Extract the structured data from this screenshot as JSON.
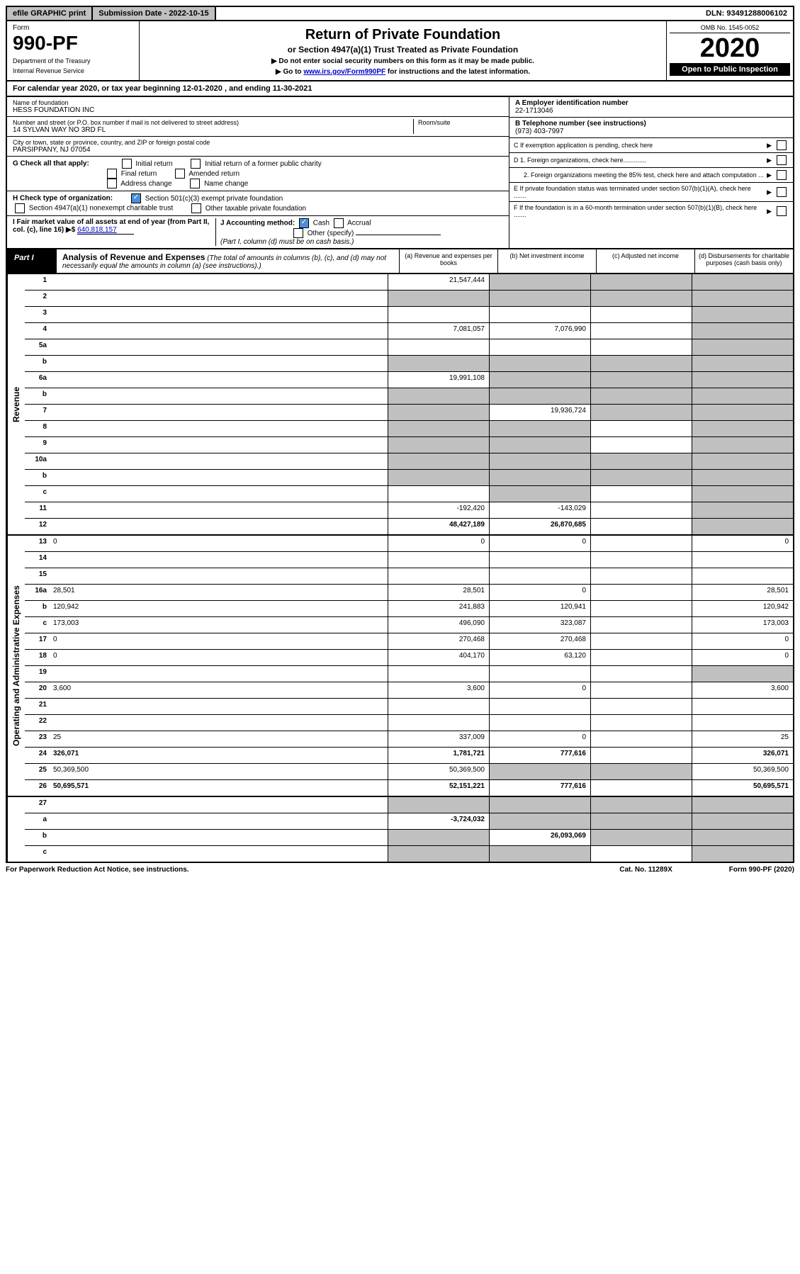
{
  "topbar": {
    "efile": "efile GRAPHIC print",
    "submission": "Submission Date - 2022-10-15",
    "dln": "DLN: 93491288006102"
  },
  "header": {
    "form_label": "Form",
    "form_number": "990-PF",
    "dept1": "Department of the Treasury",
    "dept2": "Internal Revenue Service",
    "title": "Return of Private Foundation",
    "subtitle": "or Section 4947(a)(1) Trust Treated as Private Foundation",
    "note1": "▶ Do not enter social security numbers on this form as it may be made public.",
    "note2": "▶ Go to ",
    "note2_link": "www.irs.gov/Form990PF",
    "note2_tail": " for instructions and the latest information.",
    "omb": "OMB No. 1545-0052",
    "year": "2020",
    "open": "Open to Public Inspection"
  },
  "calyear": "For calendar year 2020, or tax year beginning 12-01-2020                              , and ending 11-30-2021",
  "info": {
    "name_label": "Name of foundation",
    "name": "HESS FOUNDATION INC",
    "addr_label": "Number and street (or P.O. box number if mail is not delivered to street address)",
    "addr": "14 SYLVAN WAY NO 3RD FL",
    "room_label": "Room/suite",
    "city_label": "City or town, state or province, country, and ZIP or foreign postal code",
    "city": "PARSIPPANY, NJ  07054",
    "ein_label": "A Employer identification number",
    "ein": "22-1713046",
    "phone_label": "B Telephone number (see instructions)",
    "phone": "(973) 403-7997",
    "c_label": "C If exemption application is pending, check here",
    "d1": "D 1. Foreign organizations, check here.............",
    "d2": "2. Foreign organizations meeting the 85% test, check here and attach computation ...",
    "e_label": "E If private foundation status was terminated under section 507(b)(1)(A), check here .......",
    "f_label": "F If the foundation is in a 60-month termination under section 507(b)(1)(B), check here .......",
    "g_label": "G Check all that apply:",
    "g_opts": [
      "Initial return",
      "Initial return of a former public charity",
      "Final return",
      "Amended return",
      "Address change",
      "Name change"
    ],
    "h_label": "H Check type of organization:",
    "h_opts": [
      "Section 501(c)(3) exempt private foundation",
      "Section 4947(a)(1) nonexempt charitable trust",
      "Other taxable private foundation"
    ],
    "i_label": "I Fair market value of all assets at end of year (from Part II, col. (c), line 16) ▶$",
    "i_val": "640,818,157",
    "j_label": "J Accounting method:",
    "j_cash": "Cash",
    "j_accrual": "Accrual",
    "j_other": "Other (specify)",
    "j_note": "(Part I, column (d) must be on cash basis.)"
  },
  "part1": {
    "label": "Part I",
    "title": "Analysis of Revenue and Expenses",
    "desc": "(The total of amounts in columns (b), (c), and (d) may not necessarily equal the amounts in column (a) (see instructions).)",
    "cols": {
      "a": "(a) Revenue and expenses per books",
      "b": "(b) Net investment income",
      "c": "(c) Adjusted net income",
      "d": "(d) Disbursements for charitable purposes (cash basis only)"
    }
  },
  "sections": {
    "revenue": "Revenue",
    "expenses": "Operating and Administrative Expenses"
  },
  "rows": [
    {
      "n": "1",
      "d": "",
      "a": "21,547,444",
      "b": "",
      "c": "",
      "grey_b": true,
      "grey_c": true,
      "grey_d": true
    },
    {
      "n": "2",
      "d": "",
      "a": "",
      "b": "",
      "c": "",
      "grey_a": true,
      "grey_b": true,
      "grey_c": true,
      "grey_d": true
    },
    {
      "n": "3",
      "d": "",
      "a": "",
      "b": "",
      "c": "",
      "grey_d": true
    },
    {
      "n": "4",
      "d": "",
      "a": "7,081,057",
      "b": "7,076,990",
      "c": "",
      "grey_d": true
    },
    {
      "n": "5a",
      "d": "",
      "a": "",
      "b": "",
      "c": "",
      "grey_d": true
    },
    {
      "n": "b",
      "d": "",
      "a": "",
      "b": "",
      "c": "",
      "grey_a": true,
      "grey_b": true,
      "grey_c": true,
      "grey_d": true
    },
    {
      "n": "6a",
      "d": "",
      "a": "19,991,108",
      "b": "",
      "c": "",
      "grey_b": true,
      "grey_c": true,
      "grey_d": true
    },
    {
      "n": "b",
      "d": "",
      "a": "",
      "b": "",
      "c": "",
      "grey_a": true,
      "grey_b": true,
      "grey_c": true,
      "grey_d": true
    },
    {
      "n": "7",
      "d": "",
      "a": "",
      "b": "19,936,724",
      "c": "",
      "grey_a": true,
      "grey_c": true,
      "grey_d": true
    },
    {
      "n": "8",
      "d": "",
      "a": "",
      "b": "",
      "c": "",
      "grey_a": true,
      "grey_b": true,
      "grey_d": true
    },
    {
      "n": "9",
      "d": "",
      "a": "",
      "b": "",
      "c": "",
      "grey_a": true,
      "grey_b": true,
      "grey_d": true
    },
    {
      "n": "10a",
      "d": "",
      "a": "",
      "b": "",
      "c": "",
      "grey_a": true,
      "grey_b": true,
      "grey_c": true,
      "grey_d": true
    },
    {
      "n": "b",
      "d": "",
      "a": "",
      "b": "",
      "c": "",
      "grey_a": true,
      "grey_b": true,
      "grey_c": true,
      "grey_d": true
    },
    {
      "n": "c",
      "d": "",
      "a": "",
      "b": "",
      "c": "",
      "grey_b": true,
      "grey_d": true
    },
    {
      "n": "11",
      "d": "",
      "a": "-192,420",
      "b": "-143,029",
      "c": "",
      "grey_d": true
    },
    {
      "n": "12",
      "d": "",
      "a": "48,427,189",
      "b": "26,870,685",
      "c": "",
      "grey_d": true,
      "bold": true
    }
  ],
  "exp_rows": [
    {
      "n": "13",
      "d": "0",
      "a": "0",
      "b": "0",
      "c": ""
    },
    {
      "n": "14",
      "d": "",
      "a": "",
      "b": "",
      "c": ""
    },
    {
      "n": "15",
      "d": "",
      "a": "",
      "b": "",
      "c": ""
    },
    {
      "n": "16a",
      "d": "28,501",
      "a": "28,501",
      "b": "0",
      "c": ""
    },
    {
      "n": "b",
      "d": "120,942",
      "a": "241,883",
      "b": "120,941",
      "c": ""
    },
    {
      "n": "c",
      "d": "173,003",
      "a": "496,090",
      "b": "323,087",
      "c": ""
    },
    {
      "n": "17",
      "d": "0",
      "a": "270,468",
      "b": "270,468",
      "c": ""
    },
    {
      "n": "18",
      "d": "0",
      "a": "404,170",
      "b": "63,120",
      "c": ""
    },
    {
      "n": "19",
      "d": "",
      "a": "",
      "b": "",
      "c": "",
      "grey_d": true
    },
    {
      "n": "20",
      "d": "3,600",
      "a": "3,600",
      "b": "0",
      "c": ""
    },
    {
      "n": "21",
      "d": "",
      "a": "",
      "b": "",
      "c": ""
    },
    {
      "n": "22",
      "d": "",
      "a": "",
      "b": "",
      "c": ""
    },
    {
      "n": "23",
      "d": "25",
      "a": "337,009",
      "b": "0",
      "c": ""
    },
    {
      "n": "24",
      "d": "326,071",
      "a": "1,781,721",
      "b": "777,616",
      "c": "",
      "bold": true
    },
    {
      "n": "25",
      "d": "50,369,500",
      "a": "50,369,500",
      "b": "",
      "c": "",
      "grey_b": true,
      "grey_c": true
    },
    {
      "n": "26",
      "d": "50,695,571",
      "a": "52,151,221",
      "b": "777,616",
      "c": "",
      "bold": true
    }
  ],
  "net_rows": [
    {
      "n": "27",
      "d": "",
      "a": "",
      "b": "",
      "c": "",
      "grey_a": true,
      "grey_b": true,
      "grey_c": true,
      "grey_d": true,
      "bold": true
    },
    {
      "n": "a",
      "d": "",
      "a": "-3,724,032",
      "b": "",
      "c": "",
      "grey_b": true,
      "grey_c": true,
      "grey_d": true,
      "bold": true
    },
    {
      "n": "b",
      "d": "",
      "a": "",
      "b": "26,093,069",
      "c": "",
      "grey_a": true,
      "grey_c": true,
      "grey_d": true,
      "bold": true
    },
    {
      "n": "c",
      "d": "",
      "a": "",
      "b": "",
      "c": "",
      "grey_a": true,
      "grey_b": true,
      "grey_d": true,
      "bold": true
    }
  ],
  "footer": {
    "left": "For Paperwork Reduction Act Notice, see instructions.",
    "mid": "Cat. No. 11289X",
    "right": "Form 990-PF (2020)"
  }
}
